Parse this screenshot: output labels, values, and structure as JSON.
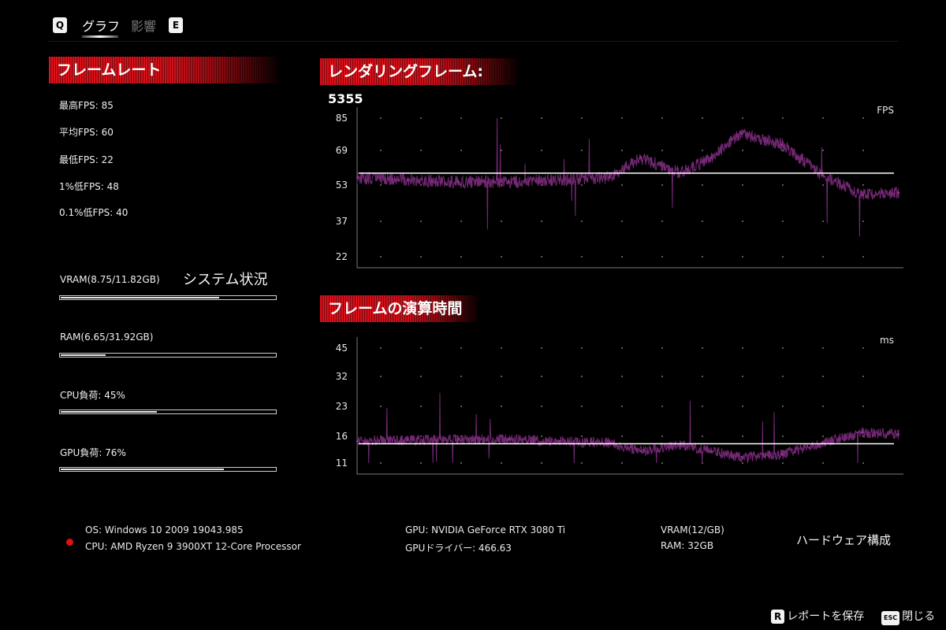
{
  "nav": {
    "prev_key": "Q",
    "next_key": "E",
    "tabs": [
      {
        "label": "グラフ",
        "active": true
      },
      {
        "label": "影響",
        "active": false
      }
    ]
  },
  "framerate": {
    "title": "フレームレート",
    "stats": [
      {
        "label": "最高FPS: 85"
      },
      {
        "label": "平均FPS: 60"
      },
      {
        "label": "最低FPS: 22"
      },
      {
        "label": "1%低FPS: 48"
      },
      {
        "label": "0.1%低FPS: 40"
      }
    ]
  },
  "system": {
    "caption": "システム状況",
    "bars": [
      {
        "label": "VRAM(8.75/11.82GB)",
        "fraction": 0.74
      },
      {
        "label": "RAM(6.65/31.92GB)",
        "fraction": 0.21
      },
      {
        "label": "CPU負荷: 45%",
        "fraction": 0.45
      },
      {
        "label": "GPU負荷: 76%",
        "fraction": 0.76
      }
    ]
  },
  "fps_chart": {
    "title_prefix": "レンダリングフレーム: ",
    "frames": "5355",
    "unit": "FPS",
    "ticks": [
      "85",
      "69",
      "53",
      "37",
      "22"
    ],
    "average": 60
  },
  "frametime_chart": {
    "title": "フレームの演算時間",
    "unit": "ms",
    "ticks": [
      "45",
      "32",
      "23",
      "16",
      "11"
    ],
    "average": 16.7
  },
  "chart_data": [
    {
      "type": "line",
      "title": "レンダリングフレーム: 5355",
      "ylabel": "FPS",
      "ylim": [
        22,
        85
      ],
      "y_ticks": [
        85,
        69,
        53,
        37,
        22
      ],
      "reference_line": 60,
      "series": [
        {
          "x": [
            0,
            500,
            1000,
            1500,
            2000,
            2500,
            2800,
            3200,
            3500,
            3800,
            4200,
            4600,
            5000,
            5355
          ],
          "values": [
            58,
            57,
            56,
            56,
            57,
            58,
            67,
            60,
            67,
            78,
            73,
            59,
            50,
            51
          ]
        }
      ]
    },
    {
      "type": "line",
      "title": "フレームの演算時間",
      "ylabel": "ms",
      "ylim": [
        11,
        45
      ],
      "y_ticks": [
        45,
        32,
        23,
        16,
        11
      ],
      "reference_line": 16.7,
      "series": [
        {
          "x": [
            0,
            500,
            1000,
            1500,
            2000,
            2500,
            2800,
            3200,
            3500,
            3800,
            4200,
            4600,
            5000,
            5355
          ],
          "values": [
            17.5,
            17.8,
            18,
            18,
            17.5,
            17,
            14.5,
            16.5,
            14.5,
            12.8,
            13.5,
            17,
            20,
            19.5
          ]
        }
      ]
    }
  ],
  "hardware": {
    "os": "OS: Windows 10 2009 19043.985",
    "cpu": "CPU: AMD Ryzen 9 3900XT 12-Core Processor",
    "gpu": "GPU: NVIDIA GeForce RTX 3080 Ti",
    "gpu_driver": "GPUドライバー: 466.63",
    "vram": "VRAM(12/GB)",
    "ram": "RAM: 32GB",
    "caption": "ハードウェア構成"
  },
  "footer": {
    "save_key": "R",
    "save_label": "レポートを保存",
    "close_key": "ESC",
    "close_label": "閉じる"
  },
  "colors": {
    "accent_red": "#e0101a",
    "series_purple": "#7a2a7a",
    "status_dot": "#e01010"
  }
}
